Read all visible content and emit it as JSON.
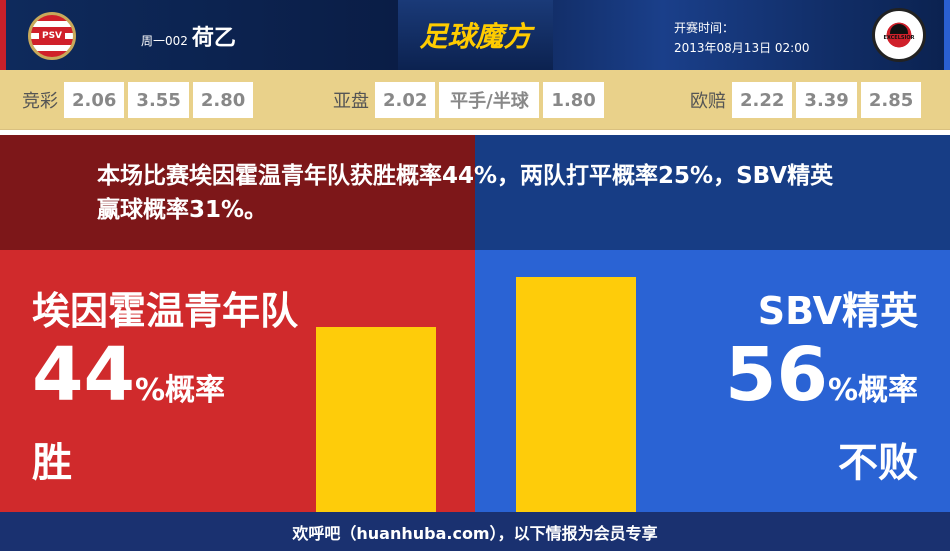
{
  "header": {
    "home_logo_text": "PSV",
    "match_code": "周一002",
    "league": "荷乙",
    "brand": "足球魔方",
    "time_label": "开赛时间：",
    "time_value": "2013年08月13日 02:00",
    "away_logo_text": "S.B.V. EXCELSIOR"
  },
  "odds": {
    "jingcai": {
      "label": "竞彩",
      "values": [
        "2.06",
        "3.55",
        "2.80"
      ]
    },
    "yapan": {
      "label": "亚盘",
      "values": [
        "2.02",
        "平手/半球",
        "1.80"
      ]
    },
    "oupei": {
      "label": "欧赔",
      "values": [
        "2.22",
        "3.39",
        "2.85"
      ]
    }
  },
  "summary": "本场比赛埃因霍温青年队获胜概率44%，两队打平概率25%，SBV精英赢球概率31%。",
  "home": {
    "name": "埃因霍温青年队",
    "percent": "44",
    "unit": "%概率",
    "result": "胜",
    "value": 44
  },
  "away": {
    "name": "SBV精英",
    "percent": "56",
    "unit": "%概率",
    "result": "不败",
    "value": 56
  },
  "footer": "欢呼吧（huanhuba.com），以下情报为会员专享",
  "colors": {
    "home": "#d02a2c",
    "away": "#2a63d4",
    "bar": "#fecc0a"
  }
}
